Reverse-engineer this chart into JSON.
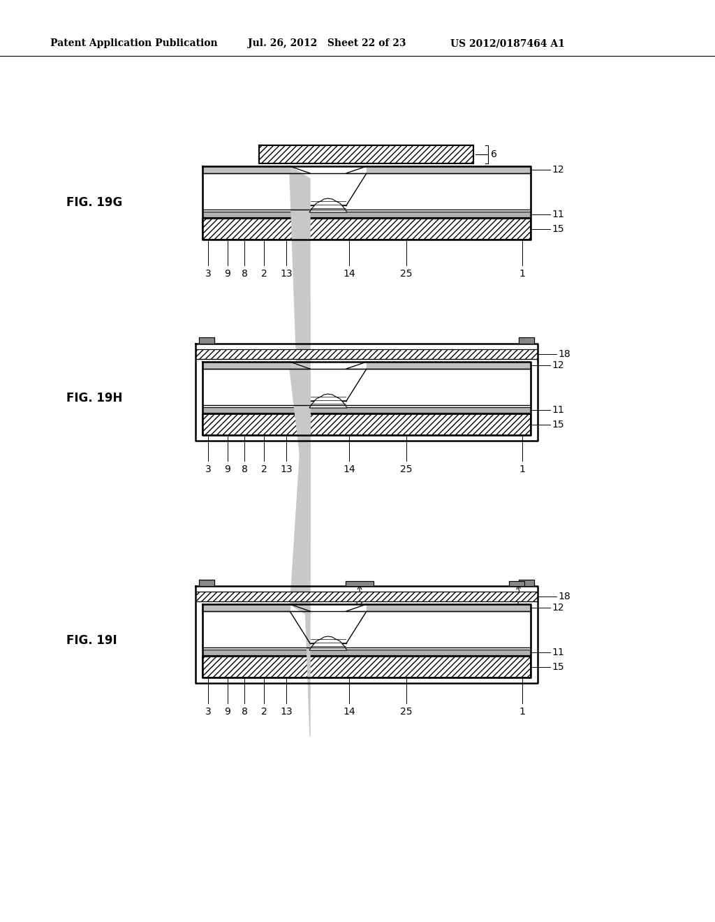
{
  "bg_color": "#ffffff",
  "lc": "#000000",
  "header_left": "Patent Application Publication",
  "header_mid": "Jul. 26, 2012   Sheet 22 of 23",
  "header_right": "US 2012/0187464 A1",
  "figures": [
    {
      "label": "FIG. 19G",
      "has_top6": true,
      "has_frame18": false,
      "has_17_7": false,
      "right_labels": [
        "6",
        "12",
        "11",
        "15"
      ],
      "bottom_labels": [
        "3",
        "9",
        "8",
        "2",
        "13",
        "14",
        "25",
        "1"
      ]
    },
    {
      "label": "FIG. 19H",
      "has_top6": false,
      "has_frame18": true,
      "has_17_7": false,
      "right_labels": [
        "18",
        "12",
        "11",
        "15"
      ],
      "bottom_labels": [
        "3",
        "9",
        "8",
        "2",
        "13",
        "14",
        "25",
        "1"
      ]
    },
    {
      "label": "FIG. 19I",
      "has_top6": false,
      "has_frame18": true,
      "has_17_7": true,
      "right_labels": [
        "18",
        "12",
        "11",
        "15"
      ],
      "bottom_labels": [
        "3",
        "9",
        "8",
        "2",
        "13",
        "14",
        "25",
        "1"
      ]
    }
  ]
}
